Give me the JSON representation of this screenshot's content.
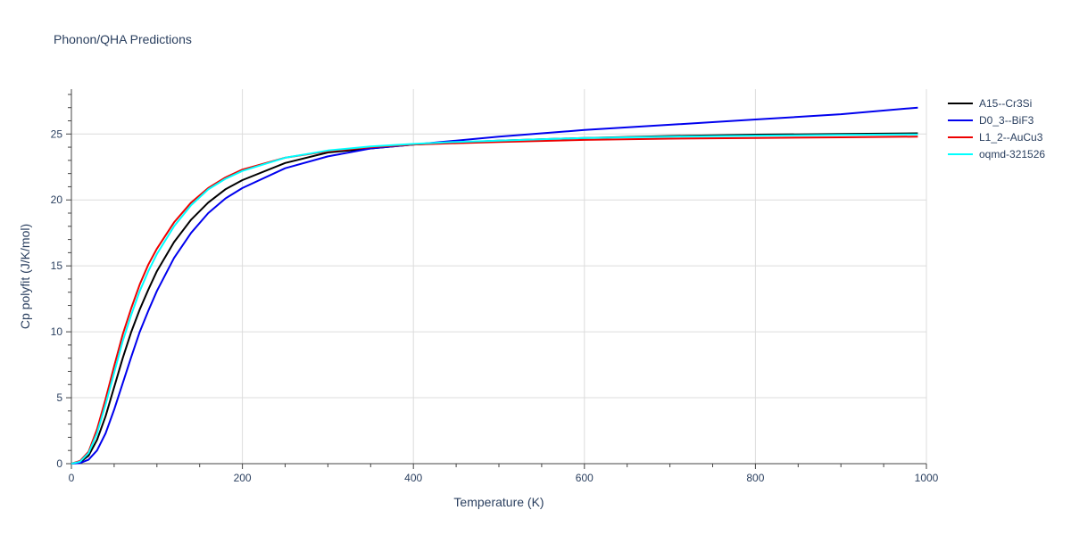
{
  "figure": {
    "title": "Phonon/QHA Predictions"
  },
  "chart_data": {
    "type": "line",
    "title": "Phonon/QHA Predictions",
    "xlabel": "Temperature (K)",
    "ylabel": "Cp polyfit (J/K/mol)",
    "xlim": [
      0,
      1000
    ],
    "ylim": [
      0,
      28.4
    ],
    "xticks": [
      0,
      200,
      400,
      600,
      800,
      1000
    ],
    "yticks": [
      0,
      5,
      10,
      15,
      20,
      25
    ],
    "grid": true,
    "legend_position": "top-right outside",
    "x": [
      0,
      10,
      20,
      30,
      40,
      50,
      60,
      70,
      80,
      90,
      100,
      120,
      140,
      160,
      180,
      200,
      250,
      300,
      350,
      400,
      450,
      500,
      600,
      700,
      800,
      900,
      990
    ],
    "series": [
      {
        "name": "A15--Cr3Si",
        "color": "#000000",
        "values": [
          0,
          0.1,
          0.6,
          1.8,
          3.6,
          5.8,
          8.0,
          10.0,
          11.7,
          13.2,
          14.6,
          16.8,
          18.5,
          19.8,
          20.8,
          21.5,
          22.8,
          23.6,
          23.9,
          24.2,
          24.35,
          24.5,
          24.7,
          24.85,
          24.95,
          25.0,
          25.05
        ]
      },
      {
        "name": "D0_3--BiF3",
        "color": "#0000ee",
        "values": [
          0,
          0.05,
          0.3,
          1.0,
          2.3,
          4.1,
          6.1,
          8.1,
          10.0,
          11.6,
          13.1,
          15.6,
          17.5,
          19.0,
          20.1,
          20.9,
          22.4,
          23.3,
          23.9,
          24.2,
          24.5,
          24.8,
          25.3,
          25.7,
          26.1,
          26.5,
          27.0
        ]
      },
      {
        "name": "L1_2--AuCu3",
        "color": "#ee0000",
        "values": [
          0,
          0.2,
          0.9,
          2.6,
          4.9,
          7.4,
          9.8,
          11.8,
          13.6,
          15.1,
          16.3,
          18.3,
          19.8,
          20.9,
          21.7,
          22.3,
          23.2,
          23.7,
          24.0,
          24.2,
          24.3,
          24.4,
          24.55,
          24.65,
          24.7,
          24.75,
          24.8
        ]
      },
      {
        "name": "oqmd-321526",
        "color": "#00ffff",
        "values": [
          0,
          0.15,
          0.8,
          2.3,
          4.5,
          6.9,
          9.3,
          11.3,
          13.1,
          14.6,
          15.9,
          18.0,
          19.6,
          20.8,
          21.6,
          22.2,
          23.2,
          23.75,
          24.05,
          24.25,
          24.4,
          24.5,
          24.7,
          24.8,
          24.88,
          24.93,
          24.97
        ]
      }
    ]
  }
}
